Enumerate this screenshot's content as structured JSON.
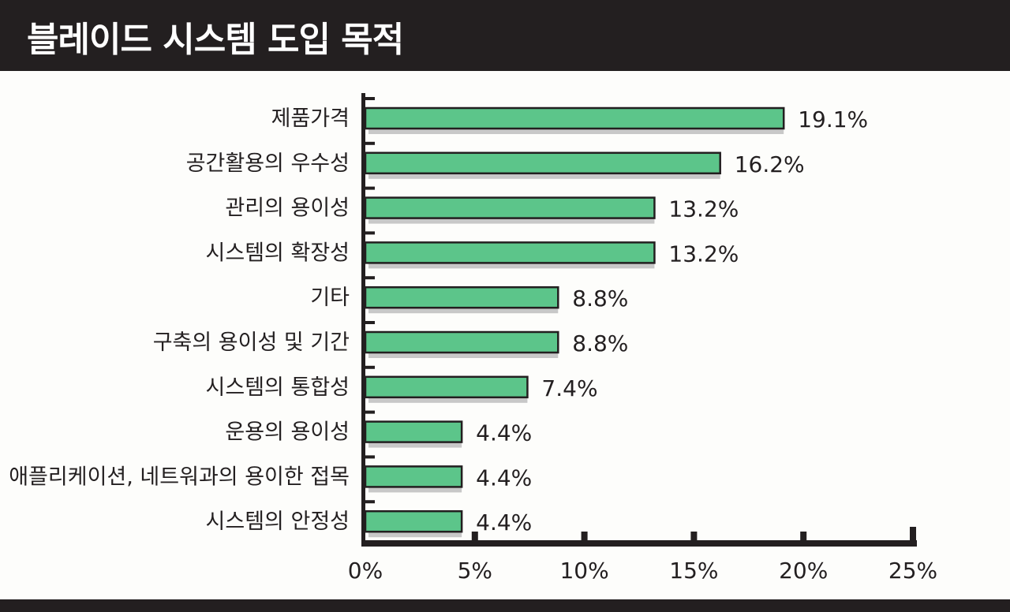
{
  "chart_data": {
    "type": "bar",
    "orientation": "horizontal",
    "title": "블레이드 시스템 도입 목적",
    "categories": [
      "제품가격",
      "공간활용의 우수성",
      "관리의 용이성",
      "시스템의 확장성",
      "기타",
      "구축의 용이성 및 기간",
      "시스템의 통합성",
      "운용의 용이성",
      "애플리케이션, 네트워과의 용이한 접목",
      "시스템의 안정성"
    ],
    "values": [
      19.1,
      16.2,
      13.2,
      13.2,
      8.8,
      8.8,
      7.4,
      4.4,
      4.4,
      4.4
    ],
    "value_labels": [
      "19.1%",
      "16.2%",
      "13.2%",
      "13.2%",
      "8.8%",
      "8.8%",
      "7.4%",
      "4.4%",
      "4.4%",
      "4.4%"
    ],
    "xlim": [
      0,
      25
    ],
    "xticks": [
      "0%",
      "5%",
      "10%",
      "15%",
      "20%",
      "25%"
    ],
    "xlabel": "",
    "ylabel": "",
    "grid": false,
    "bar_color": "#5cc58a"
  }
}
